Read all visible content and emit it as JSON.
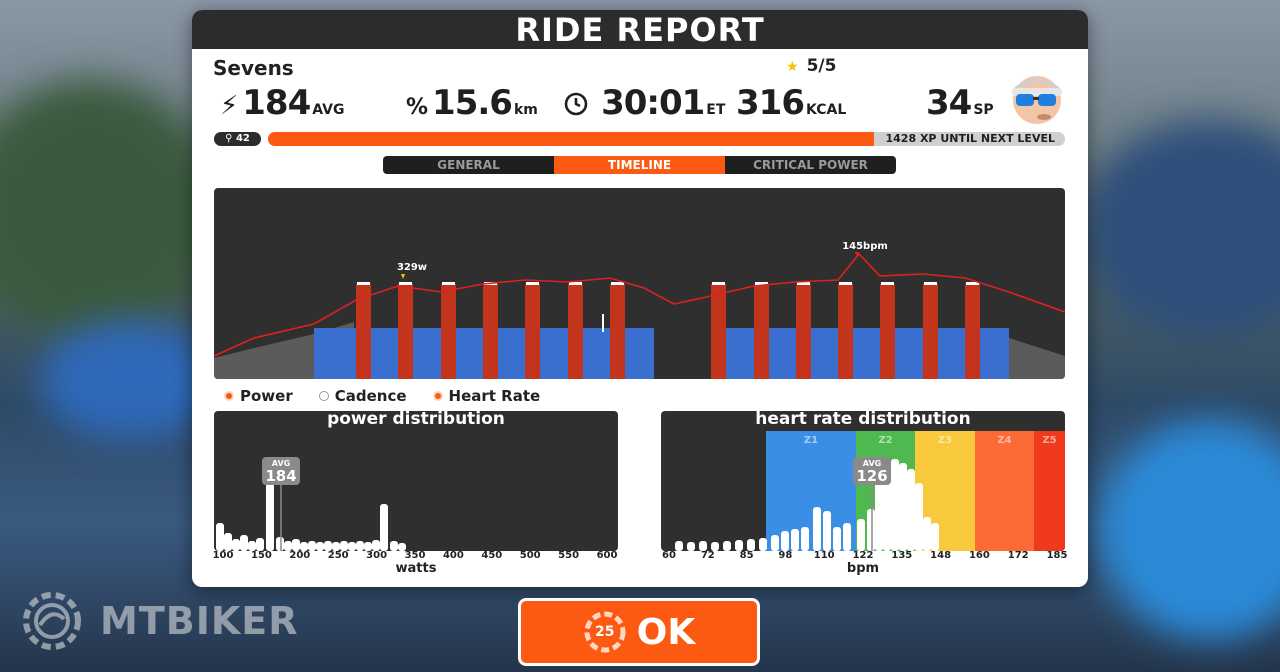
{
  "header": {
    "title": "RIDE REPORT"
  },
  "ride": {
    "name": "Sevens",
    "rating": "5/5"
  },
  "stats": {
    "power": {
      "value": "184",
      "unit": "AVG"
    },
    "distance": {
      "value": "15.6",
      "unit": "km"
    },
    "time": {
      "value": "30:01",
      "unit": "ET"
    },
    "calories": {
      "value": "316",
      "unit": "KCAL"
    },
    "sp": {
      "value": "34",
      "unit": "SP"
    }
  },
  "level": {
    "value": "42",
    "xp_text": "1428 XP UNTIL NEXT LEVEL",
    "progress": 0.76
  },
  "tabs": [
    {
      "label": "GENERAL",
      "active": false
    },
    {
      "label": "TIMELINE",
      "active": true
    },
    {
      "label": "CRITICAL POWER",
      "active": false
    }
  ],
  "timeline": {
    "peak_power_label": "329w",
    "peak_hr_label": "145bpm"
  },
  "legend": {
    "power": "Power",
    "cadence": "Cadence",
    "heart_rate": "Heart Rate"
  },
  "power_distribution": {
    "title": "power distribution",
    "xlabel": "watts",
    "ticks": [
      "100",
      "150",
      "200",
      "250",
      "300",
      "350",
      "400",
      "450",
      "500",
      "550",
      "600"
    ],
    "avg_label": "AVG",
    "avg_value": "184"
  },
  "hr_distribution": {
    "title": "heart rate distribution",
    "xlabel": "bpm",
    "ticks": [
      "60",
      "72",
      "85",
      "98",
      "110",
      "122",
      "135",
      "148",
      "160",
      "172",
      "185"
    ],
    "zones": [
      "Z1",
      "Z2",
      "Z3",
      "Z4",
      "Z5"
    ],
    "zone_colors": [
      "#3a8ee6",
      "#4fb84e",
      "#f8c93d",
      "#fc6a35",
      "#f03a1e"
    ],
    "avg_label": "AVG",
    "avg_value": "126"
  },
  "ok_button": {
    "label": "OK",
    "countdown": "25"
  },
  "watermark": {
    "text": "MTBIKER"
  },
  "colors": {
    "accent": "#fc5a12",
    "panel_dark": "#2f2f2f",
    "power_blue": "#3a6fd0",
    "interval_red": "#c2341b",
    "hr_line": "#e02020"
  }
}
